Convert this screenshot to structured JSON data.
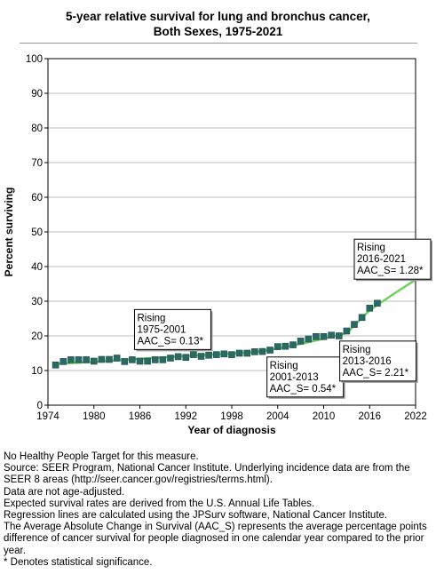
{
  "title_line1": "5-year relative survival for lung and bronchus cancer,",
  "title_line2": "Both Sexes,  1975-2021",
  "chart_data": {
    "type": "scatter",
    "xlabel": "Year of diagnosis",
    "ylabel": "Percent surviving",
    "xlim": [
      1974,
      2022
    ],
    "ylim": [
      0,
      100
    ],
    "xticks": [
      1974,
      1980,
      1986,
      1992,
      1998,
      2004,
      2010,
      2016,
      2022
    ],
    "yticks": [
      0,
      10,
      20,
      30,
      40,
      50,
      60,
      70,
      80,
      90,
      100
    ],
    "grid": true,
    "colors": {
      "observed": "#2a6a64",
      "fit": "#6fcf5f"
    },
    "observed": {
      "x": [
        1975,
        1976,
        1977,
        1978,
        1979,
        1980,
        1981,
        1982,
        1983,
        1984,
        1985,
        1986,
        1987,
        1988,
        1989,
        1990,
        1991,
        1992,
        1993,
        1994,
        1995,
        1996,
        1997,
        1998,
        1999,
        2000,
        2001,
        2002,
        2003,
        2004,
        2005,
        2006,
        2007,
        2008,
        2009,
        2010,
        2011,
        2012,
        2013,
        2014,
        2015,
        2016,
        2017
      ],
      "y": [
        11.6,
        12.6,
        13.1,
        13.1,
        13.1,
        12.7,
        13.2,
        13.2,
        13.6,
        12.6,
        13.1,
        12.7,
        12.7,
        13.1,
        13.1,
        13.6,
        14.0,
        13.8,
        14.6,
        14.1,
        14.4,
        14.6,
        14.8,
        14.6,
        15.0,
        15.0,
        15.4,
        15.5,
        15.9,
        16.9,
        17.0,
        17.4,
        18.5,
        19.1,
        19.8,
        19.8,
        20.2,
        20.0,
        21.4,
        23.3,
        25.3,
        28.0,
        29.4
      ]
    },
    "fit": {
      "x": [
        1975,
        1980,
        1986,
        1992,
        1998,
        2001,
        2004,
        2007,
        2010,
        2013,
        2016,
        2019,
        2022
      ],
      "y": [
        11.9,
        12.5,
        13.4,
        14.2,
        14.9,
        15.3,
        16.3,
        17.7,
        19.2,
        20.8,
        27.4,
        31.9,
        36.2
      ]
    },
    "annotations": [
      {
        "lines": [
          "Rising",
          "1975-2001",
          "AAC_S=  0.13*"
        ]
      },
      {
        "lines": [
          "Rising",
          "2001-2013",
          "AAC_S=  0.54*"
        ]
      },
      {
        "lines": [
          "Rising",
          "2013-2016",
          "AAC_S=  2.21*"
        ]
      },
      {
        "lines": [
          "Rising",
          "2016-2021",
          "AAC_S=  1.28*"
        ]
      }
    ]
  },
  "notes": [
    "No Healthy People Target for this measure.",
    "Source: SEER Program, National Cancer Institute. Underlying incidence data are from the SEER 8 areas (http://seer.cancer.gov/registries/terms.html).",
    "Data are not age-adjusted.",
    "Expected survival rates are derived from the U.S. Annual Life Tables.",
    "Regression lines are calculated using the JPSurv software, National Cancer Institute.",
    "The Average Absolute Change in Survival (AAC_S) represents the average percentage points difference of cancer survival for people diagnosed in one calendar year compared to the prior year.",
    "* Denotes statistical significance."
  ]
}
